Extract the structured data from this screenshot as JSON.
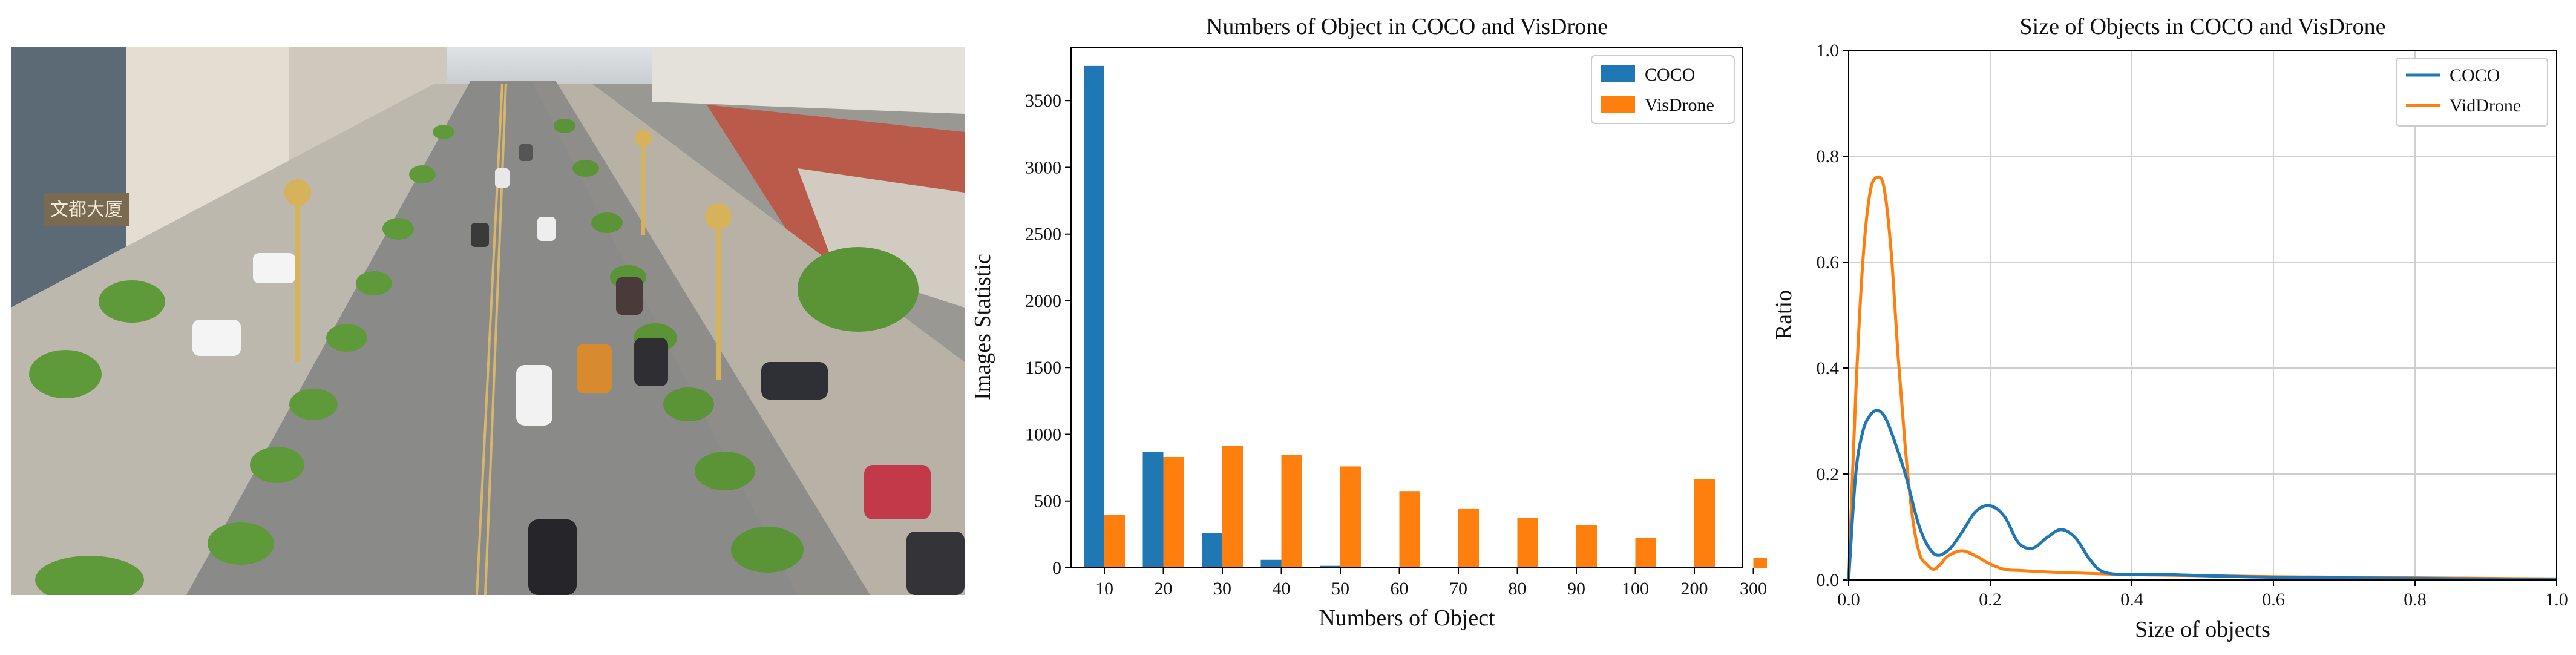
{
  "colors": {
    "coco": "#1f77b4",
    "visdrone": "#ff7f0e",
    "road": "#8a8a88",
    "tree": "#5f9a3a"
  },
  "photo": {
    "shop_sign_text": "文都大厦"
  },
  "chart_data": [
    {
      "type": "bar",
      "title": "Numbers of Object in COCO and VisDrone",
      "xlabel": "Numbers of Object",
      "ylabel": "Images Statistic",
      "categories": [
        "10",
        "20",
        "30",
        "40",
        "50",
        "60",
        "70",
        "80",
        "90",
        "100",
        "200",
        "300"
      ],
      "series": [
        {
          "name": "COCO",
          "values": [
            3760,
            870,
            260,
            60,
            15,
            0,
            0,
            0,
            0,
            0,
            0,
            0
          ]
        },
        {
          "name": "VisDrone",
          "values": [
            395,
            830,
            915,
            845,
            760,
            575,
            445,
            375,
            320,
            225,
            665,
            75
          ]
        }
      ],
      "yticks": [
        "0",
        "500",
        "1000",
        "1500",
        "2000",
        "2500",
        "3000",
        "3500"
      ],
      "ylim": [
        0,
        3900
      ],
      "legend": "top-right"
    },
    {
      "type": "line",
      "title": "Size of Objects in COCO and VisDrone",
      "xlabel": "Size of objects",
      "ylabel": "Ratio",
      "xlim": [
        0,
        1
      ],
      "ylim": [
        0,
        1
      ],
      "xticks": [
        "0.0",
        "0.2",
        "0.4",
        "0.6",
        "0.8",
        "1.0"
      ],
      "yticks": [
        "0.0",
        "0.2",
        "0.4",
        "0.6",
        "0.8",
        "1.0"
      ],
      "grid": true,
      "legend": "top-right",
      "series": [
        {
          "name": "COCO",
          "x": [
            0,
            0.01,
            0.02,
            0.03,
            0.04,
            0.05,
            0.06,
            0.08,
            0.1,
            0.12,
            0.14,
            0.16,
            0.18,
            0.2,
            0.22,
            0.24,
            0.26,
            0.28,
            0.3,
            0.32,
            0.34,
            0.36,
            0.4,
            0.45,
            0.5,
            0.6,
            0.7,
            0.8,
            0.9,
            1.0
          ],
          "y": [
            0,
            0.2,
            0.28,
            0.31,
            0.32,
            0.31,
            0.28,
            0.2,
            0.1,
            0.05,
            0.055,
            0.09,
            0.13,
            0.14,
            0.12,
            0.07,
            0.06,
            0.08,
            0.095,
            0.08,
            0.04,
            0.015,
            0.01,
            0.01,
            0.008,
            0.005,
            0.004,
            0.003,
            0.002,
            0.001
          ]
        },
        {
          "name": "VidDrone",
          "x": [
            0,
            0.01,
            0.02,
            0.03,
            0.04,
            0.05,
            0.06,
            0.07,
            0.08,
            0.09,
            0.1,
            0.11,
            0.12,
            0.13,
            0.14,
            0.16,
            0.18,
            0.2,
            0.22,
            0.24,
            0.3,
            0.4,
            0.5,
            0.6,
            0.7,
            0.8,
            0.9,
            1.0
          ],
          "y": [
            0,
            0.35,
            0.6,
            0.73,
            0.76,
            0.74,
            0.62,
            0.42,
            0.25,
            0.12,
            0.05,
            0.03,
            0.02,
            0.03,
            0.045,
            0.055,
            0.045,
            0.03,
            0.02,
            0.018,
            0.014,
            0.01,
            0.008,
            0.006,
            0.005,
            0.004,
            0.003,
            0.002
          ]
        }
      ]
    }
  ]
}
